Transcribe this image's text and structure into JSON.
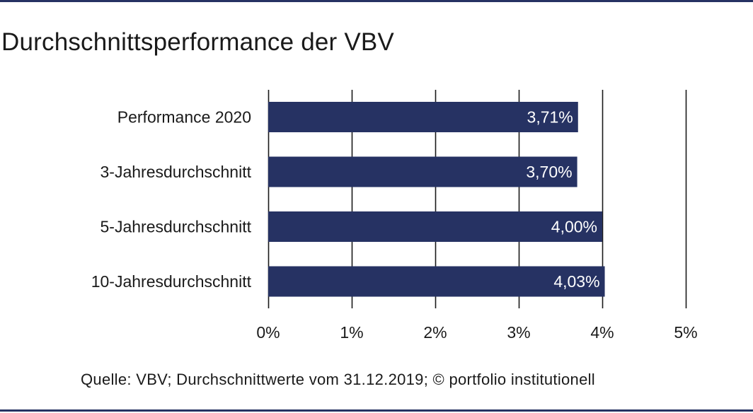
{
  "colors": {
    "bar": "#263263",
    "rule": "#263263",
    "gridline": "#1a1a1a",
    "bar_label": "#ffffff",
    "text": "#1a1a1a"
  },
  "chart_data": {
    "type": "bar",
    "orientation": "horizontal",
    "title": "Durchschnittsperformance der VBV",
    "categories": [
      "Performance 2020",
      "3-Jahresdurchschnitt",
      "5-Jahresdurchschnitt",
      "10-Jahresdurchschnitt"
    ],
    "values": [
      3.71,
      3.7,
      4.0,
      4.03
    ],
    "value_labels": [
      "3,71%",
      "3,70%",
      "4,00%",
      "4,03%"
    ],
    "x_ticks": [
      0,
      1,
      2,
      3,
      4,
      5
    ],
    "x_tick_labels": [
      "0%",
      "1%",
      "2%",
      "3%",
      "4%",
      "5%"
    ],
    "xlim": [
      0,
      5
    ],
    "xlabel": "",
    "ylabel": "",
    "grid": true,
    "legend": "none",
    "source": "Quelle: VBV; Durchschnittwerte vom 31.12.2019; © portfolio institutionell"
  }
}
